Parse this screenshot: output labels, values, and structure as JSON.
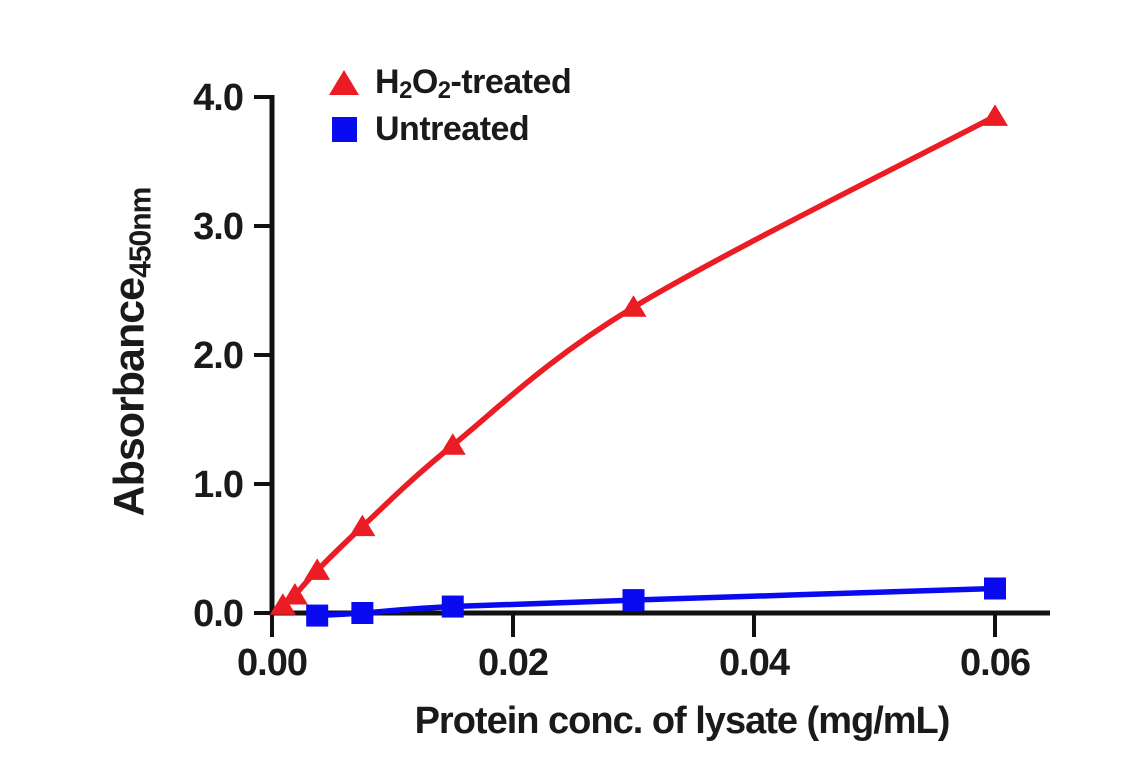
{
  "chart_data": {
    "type": "line",
    "title": "",
    "xlabel": "Protein conc. of lysate (mg/mL)",
    "ylabel": "Absorbance",
    "ylabel_subscript": "450nm",
    "xlim": [
      0,
      0.065
    ],
    "ylim": [
      -0.05,
      4.0
    ],
    "grid": false,
    "legend_position": "top-left inside plot",
    "x_ticks": [
      {
        "value": 0.0,
        "label": "0.00"
      },
      {
        "value": 0.02,
        "label": "0.02"
      },
      {
        "value": 0.04,
        "label": "0.04"
      },
      {
        "value": 0.06,
        "label": "0.06"
      }
    ],
    "y_ticks": [
      {
        "value": 0.0,
        "label": "0.0"
      },
      {
        "value": 1.0,
        "label": "1.0"
      },
      {
        "value": 2.0,
        "label": "2.0"
      },
      {
        "value": 3.0,
        "label": "3.0"
      },
      {
        "value": 4.0,
        "label": "4.0"
      }
    ],
    "series": [
      {
        "name": "H2O2-treated",
        "label_parts": [
          {
            "text": "H"
          },
          {
            "sub": "2"
          },
          {
            "text": "O"
          },
          {
            "sub": "2"
          },
          {
            "text": "-treated"
          }
        ],
        "marker": "triangle",
        "color": "#ec1c24",
        "x": [
          0.0009,
          0.0019,
          0.00375,
          0.0075,
          0.015,
          0.03,
          0.06
        ],
        "y": [
          0.06,
          0.14,
          0.33,
          0.67,
          1.3,
          2.37,
          3.85
        ]
      },
      {
        "name": "Untreated",
        "label_parts": [
          {
            "text": "Untreated"
          }
        ],
        "marker": "square",
        "color": "#0a0af0",
        "x": [
          0.00375,
          0.0075,
          0.015,
          0.03,
          0.06
        ],
        "y": [
          -0.02,
          0.0,
          0.05,
          0.1,
          0.19
        ]
      }
    ],
    "colors": {
      "axis": "#111111",
      "text": "#1c191c",
      "background": "#ffffff"
    }
  }
}
